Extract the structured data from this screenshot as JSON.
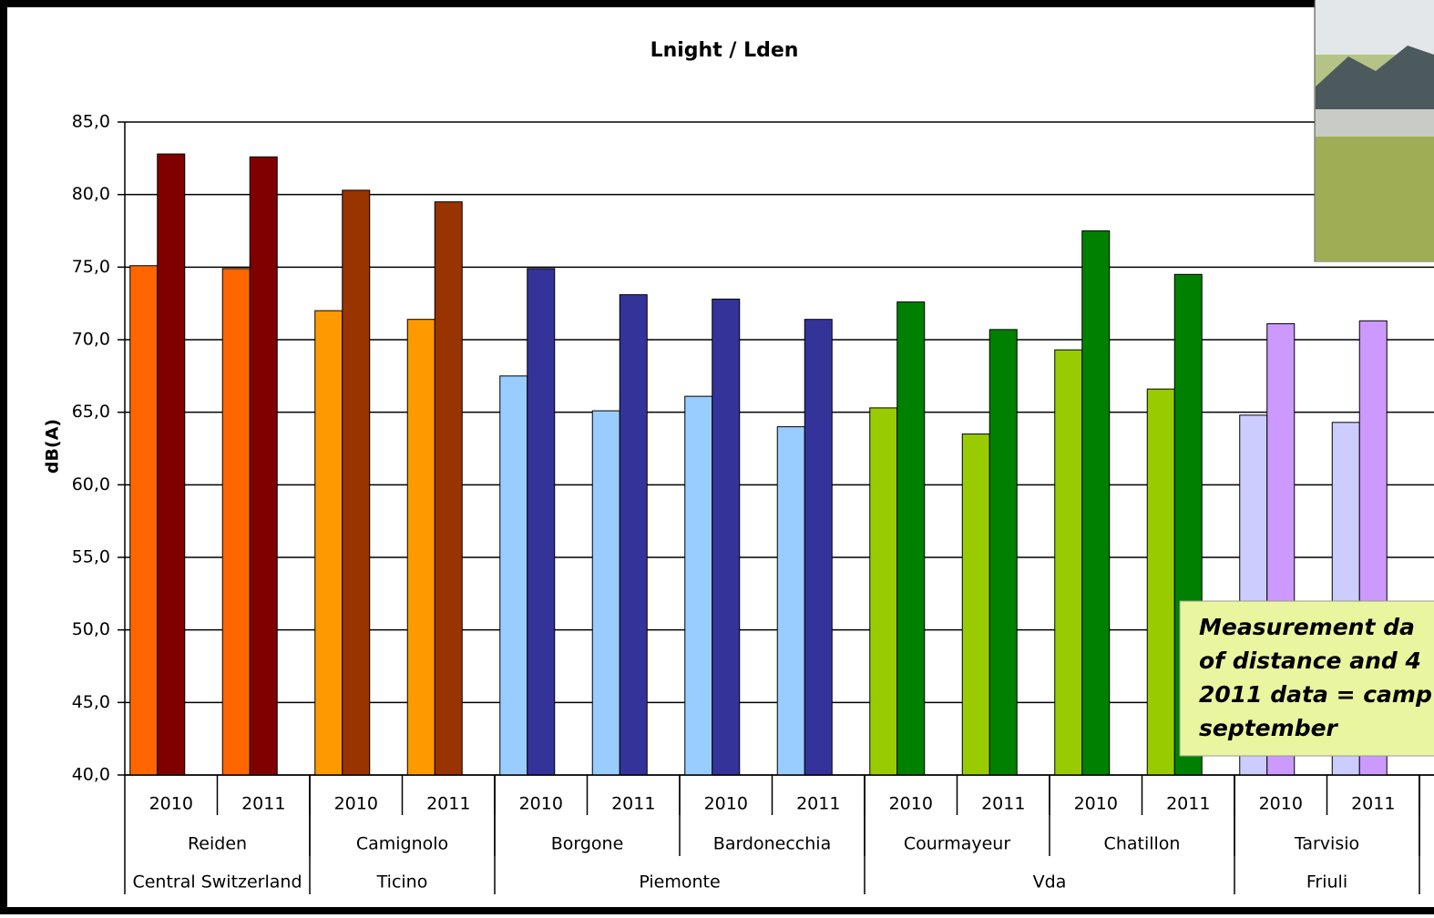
{
  "chart_data": {
    "type": "bar",
    "title": "Lnight / Lden",
    "y_label": "dB(A)",
    "categories": [
      "2010",
      "2011",
      "2010",
      "2011",
      "2010",
      "2011",
      "2010",
      "2011",
      "2010",
      "2011",
      "2010",
      "2011",
      "2010",
      "2011"
    ],
    "sites": [
      {
        "label": "Reiden",
        "span": 2
      },
      {
        "label": "Camignolo",
        "span": 2
      },
      {
        "label": "Borgone",
        "span": 2
      },
      {
        "label": "Bardonecchia",
        "span": 2
      },
      {
        "label": "Courmayeur",
        "span": 2
      },
      {
        "label": "Chatillon",
        "span": 2
      },
      {
        "label": "Tarvisio",
        "span": 2
      }
    ],
    "regions": [
      {
        "label": "Central Switzerland",
        "span": 2
      },
      {
        "label": "Ticino",
        "span": 2
      },
      {
        "label": "Piemonte",
        "span": 4
      },
      {
        "label": "Vda",
        "span": 4
      },
      {
        "label": "Friuli",
        "span": 2
      }
    ],
    "series": [
      {
        "colors": [
          "#ff6600",
          "#ff6600",
          "#ff9900",
          "#ff9900",
          "#99ccff",
          "#99ccff",
          "#99ccff",
          "#99ccff",
          "#99cc00",
          "#99cc00",
          "#99cc00",
          "#99cc00",
          "#ccccff",
          "#ccccff"
        ],
        "values": [
          75.1,
          74.9,
          72.0,
          71.4,
          67.5,
          65.1,
          66.1,
          64.0,
          65.3,
          63.5,
          69.3,
          66.6,
          64.8,
          64.3
        ]
      },
      {
        "colors": [
          "#800000",
          "#800000",
          "#993300",
          "#993300",
          "#333399",
          "#333399",
          "#333399",
          "#333399",
          "#008000",
          "#008000",
          "#008000",
          "#008000",
          "#cc99ff",
          "#cc99ff"
        ],
        "values": [
          82.8,
          82.6,
          80.3,
          79.5,
          74.9,
          73.1,
          72.8,
          71.4,
          72.6,
          70.7,
          77.5,
          74.5,
          71.1,
          71.3
        ]
      }
    ],
    "ylim": [
      40,
      85
    ],
    "yticks": [
      {
        "value": 40,
        "label": "40,0"
      },
      {
        "value": 45,
        "label": "45,0"
      },
      {
        "value": 50,
        "label": "50,0"
      },
      {
        "value": 55,
        "label": "55,0"
      },
      {
        "value": 60,
        "label": "60,0"
      },
      {
        "value": 65,
        "label": "65,0"
      },
      {
        "value": 70,
        "label": "70,0"
      },
      {
        "value": 75,
        "label": "75,0"
      },
      {
        "value": 80,
        "label": "80,0"
      },
      {
        "value": 85,
        "label": "85,0"
      }
    ],
    "grid": true,
    "annotation": [
      "Measurement da",
      "of distance and 4",
      "2011 data = camp",
      "september"
    ]
  }
}
